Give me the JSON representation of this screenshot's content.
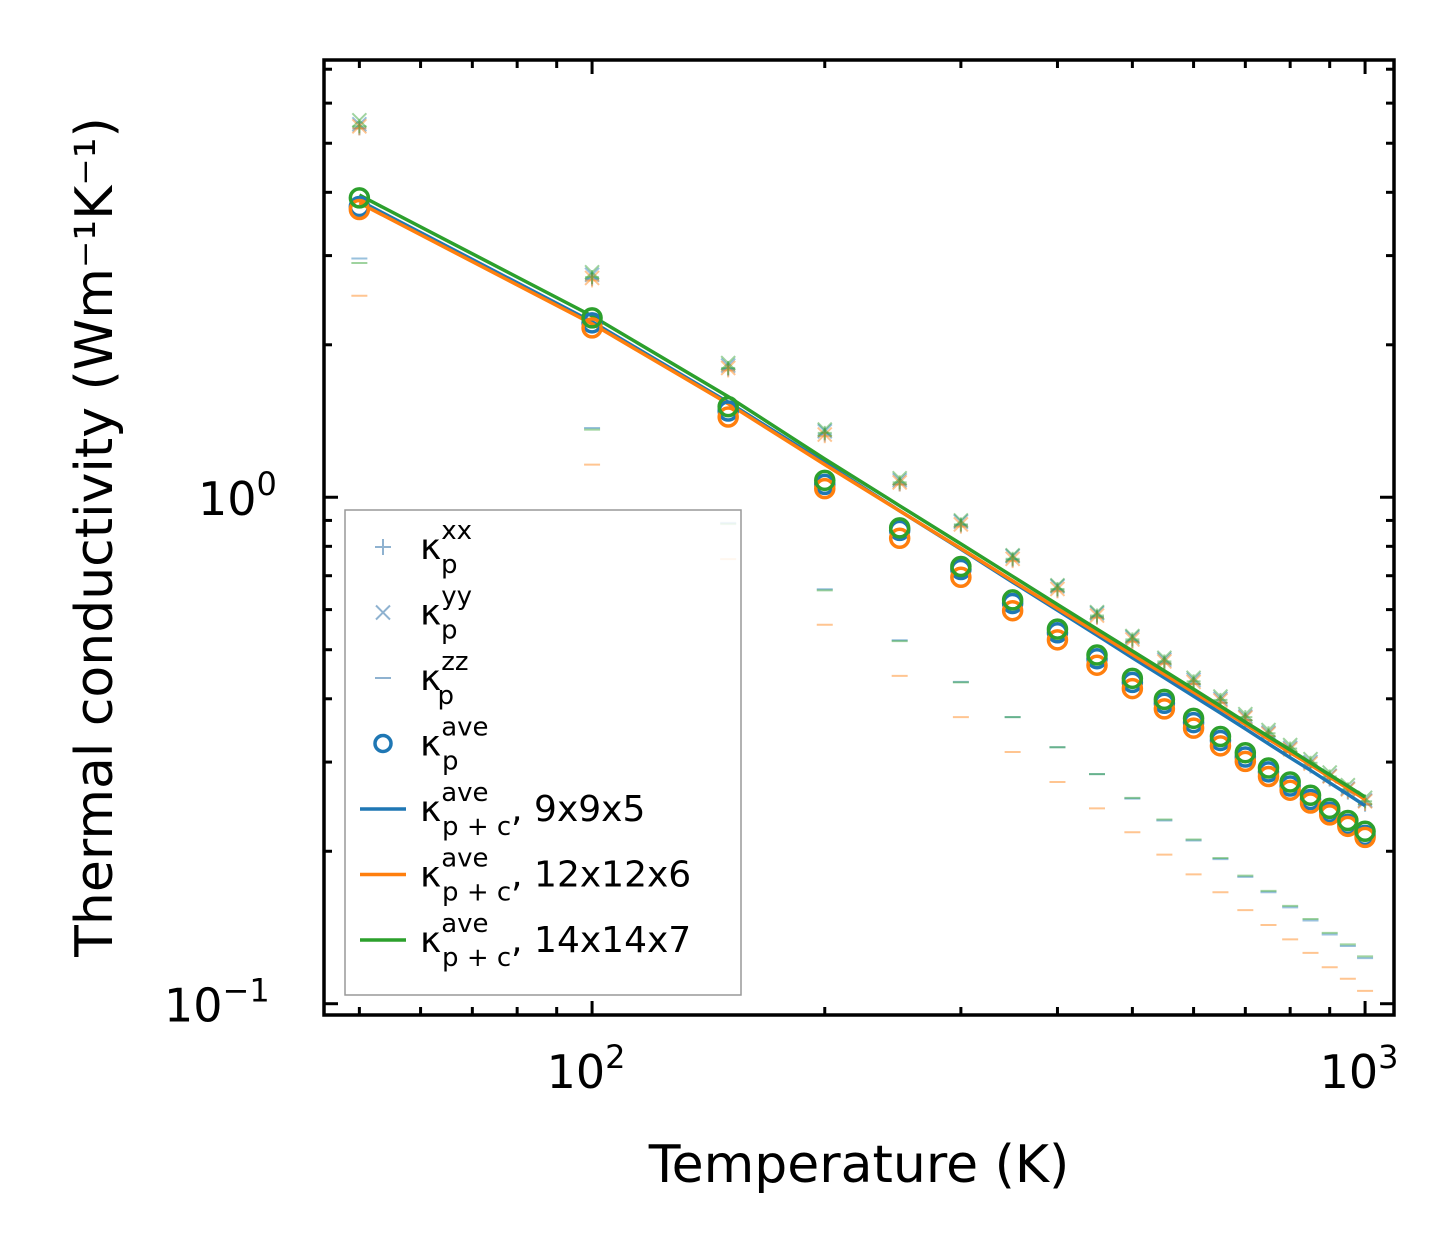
{
  "chart_data": {
    "type": "scatter",
    "xscale": "log",
    "yscale": "log",
    "xlabel": "Temperature (K)",
    "ylabel": "Thermal conductivity (Wm⁻¹K⁻¹)",
    "xlim": [
      45,
      1090
    ],
    "ylim": [
      0.095,
      7.3
    ],
    "x_ticks": [
      {
        "value": 100,
        "base": "10",
        "exp": "2"
      },
      {
        "value": 1000,
        "base": "10",
        "exp": "3"
      }
    ],
    "y_ticks": [
      {
        "value": 0.1,
        "base": "10",
        "exp": "−1"
      },
      {
        "value": 1,
        "base": "10",
        "exp": "0"
      }
    ],
    "temperatures": [
      50,
      100,
      150,
      200,
      250,
      300,
      350,
      400,
      450,
      500,
      550,
      600,
      650,
      700,
      750,
      800,
      850,
      900,
      950,
      1000
    ],
    "meshes": [
      {
        "name": "9x9x5",
        "color": "#1f77b4",
        "kxx": [
          5.35,
          2.7,
          1.79,
          1.33,
          1.06,
          0.88,
          0.752,
          0.655,
          0.58,
          0.52,
          0.47,
          0.428,
          0.393,
          0.363,
          0.337,
          0.314,
          0.294,
          0.277,
          0.261,
          0.247
        ],
        "kyy": [
          5.45,
          2.75,
          1.82,
          1.35,
          1.08,
          0.895,
          0.765,
          0.667,
          0.59,
          0.529,
          0.478,
          0.436,
          0.4,
          0.369,
          0.343,
          0.32,
          0.3,
          0.282,
          0.266,
          0.252
        ],
        "kzz": [
          2.96,
          1.37,
          0.89,
          0.658,
          0.522,
          0.432,
          0.368,
          0.321,
          0.284,
          0.254,
          0.23,
          0.21,
          0.193,
          0.178,
          0.166,
          0.155,
          0.146,
          0.137,
          0.13,
          0.123
        ],
        "kave": [
          3.75,
          2.21,
          1.48,
          1.06,
          0.86,
          0.72,
          0.617,
          0.54,
          0.48,
          0.431,
          0.392,
          0.359,
          0.331,
          0.307,
          0.287,
          0.269,
          0.253,
          0.239,
          0.226,
          0.215
        ],
        "kpc": [
          3.85,
          2.22,
          1.54,
          1.17,
          0.94,
          0.79,
          0.68,
          0.598,
          0.534,
          0.482,
          0.44,
          0.405,
          0.375,
          0.349,
          0.326,
          0.306,
          0.289,
          0.273,
          0.259,
          0.246
        ]
      },
      {
        "name": "12x12x6",
        "color": "#ff7f0e",
        "kxx": [
          5.35,
          2.68,
          1.78,
          1.32,
          1.06,
          0.875,
          0.748,
          0.652,
          0.578,
          0.518,
          0.469,
          0.428,
          0.393,
          0.363,
          0.338,
          0.315,
          0.296,
          0.278,
          0.262,
          0.248
        ],
        "kyy": [
          5.4,
          2.71,
          1.8,
          1.33,
          1.07,
          0.884,
          0.756,
          0.659,
          0.584,
          0.524,
          0.474,
          0.432,
          0.397,
          0.367,
          0.341,
          0.318,
          0.298,
          0.281,
          0.265,
          0.251
        ],
        "kzz": [
          2.5,
          1.16,
          0.755,
          0.56,
          0.444,
          0.368,
          0.314,
          0.274,
          0.243,
          0.218,
          0.197,
          0.18,
          0.166,
          0.153,
          0.143,
          0.134,
          0.126,
          0.118,
          0.112,
          0.106
        ],
        "kave": [
          3.7,
          2.16,
          1.44,
          1.04,
          0.83,
          0.695,
          0.597,
          0.523,
          0.466,
          0.419,
          0.382,
          0.35,
          0.323,
          0.301,
          0.281,
          0.264,
          0.249,
          0.236,
          0.224,
          0.213
        ],
        "kpc": [
          3.81,
          2.2,
          1.53,
          1.16,
          0.94,
          0.792,
          0.684,
          0.603,
          0.54,
          0.489,
          0.447,
          0.412,
          0.382,
          0.356,
          0.333,
          0.313,
          0.296,
          0.28,
          0.266,
          0.253
        ]
      },
      {
        "name": "14x14x7",
        "color": "#2ca02c",
        "kxx": [
          5.4,
          2.72,
          1.8,
          1.34,
          1.07,
          0.884,
          0.756,
          0.659,
          0.584,
          0.524,
          0.474,
          0.433,
          0.398,
          0.368,
          0.342,
          0.319,
          0.299,
          0.281,
          0.265,
          0.251
        ],
        "kyy": [
          5.55,
          2.78,
          1.84,
          1.36,
          1.09,
          0.9,
          0.768,
          0.67,
          0.593,
          0.532,
          0.482,
          0.44,
          0.404,
          0.373,
          0.347,
          0.324,
          0.304,
          0.286,
          0.27,
          0.255
        ],
        "kzz": [
          2.9,
          1.36,
          0.885,
          0.655,
          0.52,
          0.431,
          0.368,
          0.321,
          0.284,
          0.255,
          0.231,
          0.211,
          0.194,
          0.179,
          0.167,
          0.156,
          0.147,
          0.138,
          0.131,
          0.124
        ],
        "kave": [
          3.9,
          2.26,
          1.51,
          1.08,
          0.87,
          0.73,
          0.627,
          0.549,
          0.488,
          0.439,
          0.399,
          0.366,
          0.337,
          0.313,
          0.292,
          0.274,
          0.258,
          0.243,
          0.23,
          0.219
        ],
        "kpc": [
          3.95,
          2.28,
          1.58,
          1.19,
          0.962,
          0.809,
          0.698,
          0.614,
          0.549,
          0.497,
          0.454,
          0.418,
          0.387,
          0.36,
          0.337,
          0.317,
          0.299,
          0.283,
          0.269,
          0.256
        ]
      }
    ],
    "legend": {
      "location": "lower-left",
      "entries": [
        {
          "marker": "plus",
          "color": "#8fb2d0",
          "base": "κ",
          "sub": "p",
          "sup": "xx",
          "suffix": ""
        },
        {
          "marker": "cross",
          "color": "#8fb2d0",
          "base": "κ",
          "sub": "p",
          "sup": "yy",
          "suffix": ""
        },
        {
          "marker": "dash",
          "color": "#8fb2d0",
          "base": "κ",
          "sub": "p",
          "sup": "zz",
          "suffix": ""
        },
        {
          "marker": "circle",
          "color": "#1f77b4",
          "base": "κ",
          "sub": "p",
          "sup": "ave",
          "suffix": ""
        },
        {
          "marker": "line",
          "color": "#1f77b4",
          "base": "κ",
          "sub": "p + c",
          "sup": "ave",
          "suffix": ", 9x9x5"
        },
        {
          "marker": "line",
          "color": "#ff7f0e",
          "base": "κ",
          "sub": "p + c",
          "sup": "ave",
          "suffix": ", 12x12x6"
        },
        {
          "marker": "line",
          "color": "#2ca02c",
          "base": "κ",
          "sub": "p + c",
          "sup": "ave",
          "suffix": ", 14x14x7"
        }
      ]
    }
  }
}
